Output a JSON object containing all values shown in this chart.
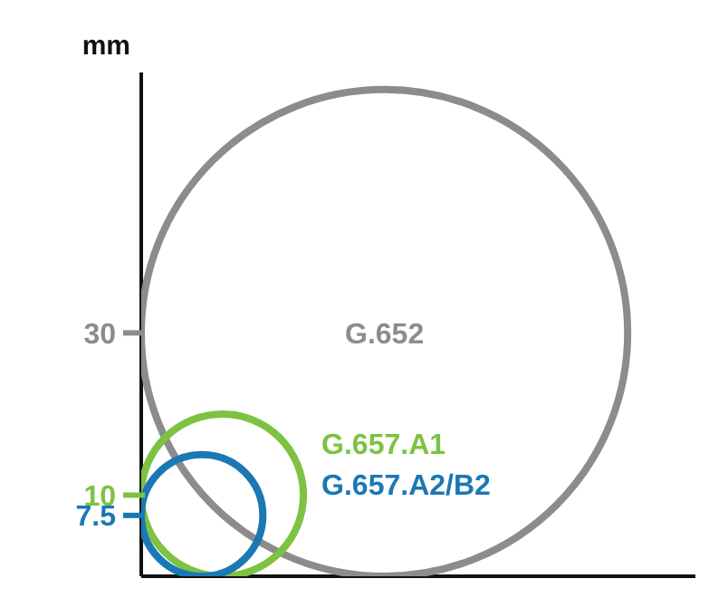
{
  "chart_data": {
    "type": "other",
    "ylabel": "mm",
    "data_labels": true,
    "categories": [
      "G.652",
      "G.657.A1",
      "G.657.A2/B2"
    ],
    "values": [
      30,
      10,
      7.5
    ],
    "colors": [
      "#8c8c8c",
      "#7dc242",
      "#1a78b4"
    ]
  }
}
